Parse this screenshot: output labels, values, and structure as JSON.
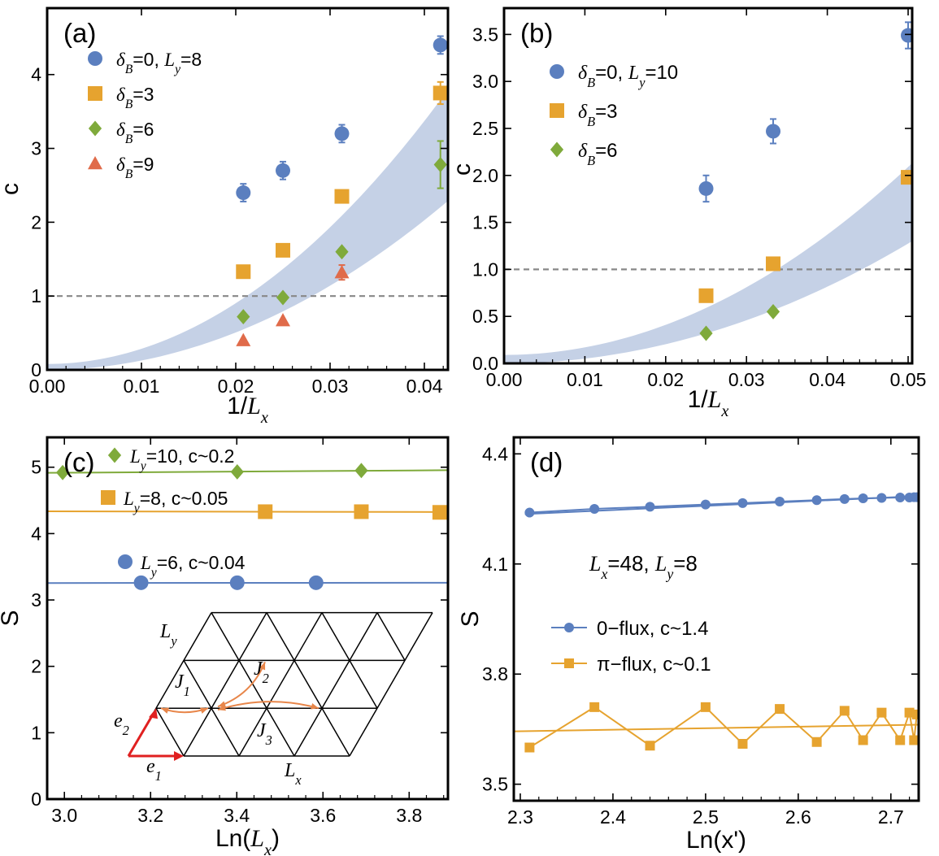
{
  "chart_data": [
    {
      "panel": "(a)",
      "type": "scatter",
      "xlabel_main": "1/",
      "xlabel_var": "L",
      "xlabel_sub": "x",
      "ylabel": "c",
      "xlim": [
        0,
        0.0425
      ],
      "ylim": [
        0,
        4.9
      ],
      "xticks": [
        0,
        0.01,
        0.02,
        0.03,
        0.04
      ],
      "xtick_labels": [
        "0.00",
        "0.01",
        "0.02",
        "0.03",
        "0.04"
      ],
      "yticks": [
        0,
        1,
        2,
        3,
        4
      ],
      "ytick_labels": [
        "0",
        "1",
        "2",
        "3",
        "4"
      ],
      "reference_line_y": 1,
      "band": {
        "x": [
          0,
          0.0425
        ],
        "lower_coef": 1267,
        "upper_coef": 2057,
        "lower_offset": 0,
        "upper_offset": 0.08
      },
      "series": [
        {
          "name": "δB=0, Ly=8",
          "legend_parts": [
            "δ",
            "B",
            "=0, ",
            "L",
            "y",
            "=8"
          ],
          "marker": "circle",
          "color": "#5b7fbf",
          "x": [
            0.0208,
            0.025,
            0.03125,
            0.0417
          ],
          "y": [
            2.4,
            2.7,
            3.2,
            4.4
          ],
          "err": [
            0.12,
            0.12,
            0.12,
            0.12
          ]
        },
        {
          "name": "δB=3",
          "legend_parts": [
            "δ",
            "B",
            "=3"
          ],
          "marker": "square",
          "color": "#e6a32f",
          "x": [
            0.0208,
            0.025,
            0.03125,
            0.0417
          ],
          "y": [
            1.33,
            1.62,
            2.35,
            3.75
          ],
          "err": [
            0.05,
            0.05,
            0.05,
            0.15
          ]
        },
        {
          "name": "δB=6",
          "legend_parts": [
            "δ",
            "B",
            "=6"
          ],
          "marker": "diamond",
          "color": "#7faa3b",
          "x": [
            0.0208,
            0.025,
            0.03125,
            0.0417
          ],
          "y": [
            0.72,
            0.98,
            1.6,
            2.78
          ],
          "err": [
            0,
            0,
            0,
            0.32
          ]
        },
        {
          "name": "δB=9",
          "legend_parts": [
            "δ",
            "B",
            "=9"
          ],
          "marker": "triangle",
          "color": "#e06b4a",
          "x": [
            0.0208,
            0.025,
            0.03125
          ],
          "y": [
            0.4,
            0.67,
            1.32
          ],
          "err": [
            0,
            0,
            0.1
          ]
        }
      ]
    },
    {
      "panel": "(b)",
      "type": "scatter",
      "xlabel_main": "1/",
      "xlabel_var": "L",
      "xlabel_sub": "x",
      "ylabel": "c",
      "xlim": [
        0,
        0.0505
      ],
      "ylim": [
        0,
        3.78
      ],
      "xticks": [
        0,
        0.01,
        0.02,
        0.03,
        0.04,
        0.05
      ],
      "xtick_labels": [
        "0.00",
        "0.01",
        "0.02",
        "0.03",
        "0.04",
        "0.05"
      ],
      "yticks": [
        0,
        0.5,
        1,
        1.5,
        2,
        2.5,
        3,
        3.5
      ],
      "ytick_labels": [
        "0.0",
        "0.5",
        "1.0",
        "1.5",
        "2.0",
        "2.5",
        "3.0",
        "3.5"
      ],
      "reference_line_y": 1,
      "band": {
        "x": [
          0,
          0.0505
        ],
        "lower_coef": 510,
        "upper_coef": 800,
        "lower_offset": 0,
        "upper_offset": 0.09
      },
      "series": [
        {
          "name": "δB=0, Ly=10",
          "legend_parts": [
            "δ",
            "B",
            "=0, ",
            "L",
            "y",
            "=10"
          ],
          "marker": "circle",
          "color": "#5b7fbf",
          "x": [
            0.025,
            0.0333,
            0.05
          ],
          "y": [
            1.86,
            2.47,
            3.49
          ],
          "err": [
            0.14,
            0.13,
            0.14
          ]
        },
        {
          "name": "δB=3",
          "legend_parts": [
            "δ",
            "B",
            "=3"
          ],
          "marker": "square",
          "color": "#e6a32f",
          "x": [
            0.025,
            0.0333,
            0.05
          ],
          "y": [
            0.72,
            1.06,
            1.98
          ],
          "err": [
            0.03,
            0.03,
            0.03
          ]
        },
        {
          "name": "δB=6",
          "legend_parts": [
            "δ",
            "B",
            "=6"
          ],
          "marker": "diamond",
          "color": "#7faa3b",
          "x": [
            0.025,
            0.0333
          ],
          "y": [
            0.32,
            0.55
          ],
          "err": [
            0,
            0
          ]
        }
      ]
    },
    {
      "panel": "(c)",
      "type": "scatter",
      "xlabel_main": "Ln(",
      "xlabel_var": "L",
      "xlabel_sub": "x",
      "xlabel_end": ")",
      "ylabel": "S",
      "xlim": [
        2.96,
        3.89
      ],
      "ylim": [
        0,
        5.45
      ],
      "xticks": [
        3.0,
        3.2,
        3.4,
        3.6,
        3.8
      ],
      "xtick_labels": [
        "3.0",
        "3.2",
        "3.4",
        "3.6",
        "3.8"
      ],
      "yticks": [
        0,
        1,
        2,
        3,
        4,
        5
      ],
      "ytick_labels": [
        "0",
        "1",
        "2",
        "3",
        "4",
        "5"
      ],
      "series": [
        {
          "name": "Ly=10, c~0.2",
          "legend_parts": [
            "L",
            "y",
            "=10, c~0.2"
          ],
          "marker": "diamond",
          "color": "#7faa3b",
          "x": [
            2.996,
            3.401,
            3.689
          ],
          "y": [
            4.92,
            4.93,
            4.95
          ],
          "fit": [
            2.96,
            4.915,
            3.89,
            4.955
          ]
        },
        {
          "name": "Ly=8, c~0.05",
          "legend_parts": [
            "L",
            "y",
            "=8, c~0.05"
          ],
          "marker": "square",
          "color": "#e6a32f",
          "x": [
            3.466,
            3.689,
            3.871
          ],
          "y": [
            4.33,
            4.33,
            4.32
          ],
          "fit": [
            2.96,
            4.335,
            3.89,
            4.325
          ]
        },
        {
          "name": "Ly=6, c~0.04",
          "legend_parts": [
            "L",
            "y",
            "=6, c~0.04"
          ],
          "marker": "circle",
          "color": "#5b7fbf",
          "x": [
            3.178,
            3.401,
            3.584
          ],
          "y": [
            3.26,
            3.26,
            3.26
          ],
          "fit": [
            2.96,
            3.255,
            3.89,
            3.26
          ]
        }
      ],
      "inset": {
        "labels": {
          "Ly": [
            "L",
            "y"
          ],
          "Lx": [
            "L",
            "x"
          ],
          "J1": [
            "J",
            "1"
          ],
          "J2": [
            "J",
            "2"
          ],
          "J3": [
            "J",
            "3"
          ],
          "e1": [
            "e",
            "1"
          ],
          "e2": [
            "e",
            "2"
          ]
        }
      }
    },
    {
      "panel": "(d)",
      "type": "line",
      "xlabel_main": "Ln(x')",
      "ylabel": "S",
      "annotation": {
        "parts": [
          "L",
          "x",
          "=48, ",
          "L",
          "y",
          "=8"
        ]
      },
      "xlim": [
        2.293,
        2.73
      ],
      "ylim": [
        3.455,
        4.445
      ],
      "xticks": [
        2.3,
        2.4,
        2.5,
        2.6,
        2.7
      ],
      "xtick_labels": [
        "2.3",
        "2.4",
        "2.5",
        "2.6",
        "2.7"
      ],
      "yticks": [
        3.5,
        3.8,
        4.1,
        4.4
      ],
      "ytick_labels": [
        "3.5",
        "3.8",
        "4.1",
        "4.4"
      ],
      "series": [
        {
          "name": "0−flux, c~1.4",
          "legend_label": "0−flux, c~1.4",
          "marker": "circle",
          "color": "#5b7fbf",
          "x": [
            2.31,
            2.38,
            2.44,
            2.5,
            2.54,
            2.58,
            2.62,
            2.65,
            2.67,
            2.69,
            2.71,
            2.72,
            2.725,
            2.728
          ],
          "y": [
            4.24,
            4.25,
            4.256,
            4.262,
            4.266,
            4.27,
            4.274,
            4.277,
            4.279,
            4.28,
            4.281,
            4.281,
            4.282,
            4.282
          ],
          "fit": [
            2.305,
            4.236,
            2.73,
            4.285
          ]
        },
        {
          "name": "π−flux, c~0.1",
          "legend_label": "π−flux, c~0.1",
          "marker": "square",
          "color": "#e6a32f",
          "x": [
            2.31,
            2.38,
            2.44,
            2.5,
            2.54,
            2.58,
            2.62,
            2.65,
            2.67,
            2.69,
            2.71,
            2.72,
            2.725,
            2.728
          ],
          "y": [
            3.6,
            3.71,
            3.605,
            3.71,
            3.61,
            3.705,
            3.615,
            3.7,
            3.62,
            3.695,
            3.62,
            3.695,
            3.62,
            3.69
          ],
          "fit": [
            2.293,
            3.644,
            2.73,
            3.662
          ]
        }
      ]
    }
  ]
}
